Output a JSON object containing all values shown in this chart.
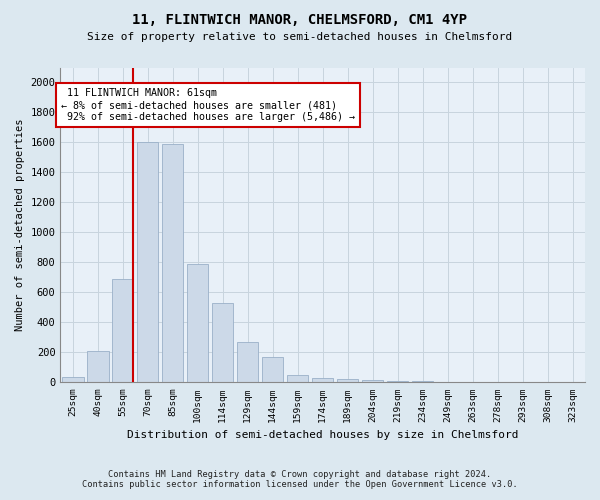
{
  "title1": "11, FLINTWICH MANOR, CHELMSFORD, CM1 4YP",
  "title2": "Size of property relative to semi-detached houses in Chelmsford",
  "xlabel": "Distribution of semi-detached houses by size in Chelmsford",
  "ylabel": "Number of semi-detached properties",
  "footnote1": "Contains HM Land Registry data © Crown copyright and database right 2024.",
  "footnote2": "Contains public sector information licensed under the Open Government Licence v3.0.",
  "bar_labels": [
    "25sqm",
    "40sqm",
    "55sqm",
    "70sqm",
    "85sqm",
    "100sqm",
    "114sqm",
    "129sqm",
    "144sqm",
    "159sqm",
    "174sqm",
    "189sqm",
    "204sqm",
    "219sqm",
    "234sqm",
    "249sqm",
    "263sqm",
    "278sqm",
    "293sqm",
    "308sqm",
    "323sqm"
  ],
  "bar_values": [
    35,
    210,
    690,
    1600,
    1590,
    790,
    530,
    270,
    170,
    50,
    30,
    20,
    15,
    12,
    8,
    5,
    3,
    1,
    1,
    1,
    1
  ],
  "bar_color": "#ccd9e8",
  "bar_edgecolor": "#9ab0c8",
  "grid_color": "#c8d4de",
  "property_label": "11 FLINTWICH MANOR: 61sqm",
  "pct_smaller": 8,
  "n_smaller": 481,
  "pct_larger": 92,
  "n_larger": 5486,
  "vline_color": "#cc0000",
  "annotation_box_edgecolor": "#cc0000",
  "ylim": [
    0,
    2100
  ],
  "yticks": [
    0,
    200,
    400,
    600,
    800,
    1000,
    1200,
    1400,
    1600,
    1800,
    2000
  ],
  "bg_color": "#dce8f0",
  "plot_bg_color": "#e8f0f8"
}
